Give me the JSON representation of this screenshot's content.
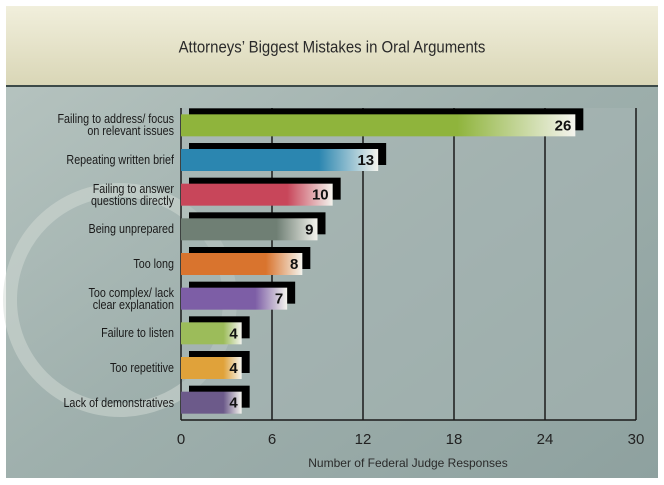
{
  "chart_data": {
    "type": "hbar",
    "title": "Attorneys’ Biggest Mistakes in Oral Arguments",
    "categories": [
      "Failing to address/ focus\non relevant issues",
      "Repeating written brief",
      "Failing to answer\nquestions directly",
      "Being unprepared",
      "Too long",
      "Too complex/ lack\nclear explanation",
      "Failure to listen",
      "Too repetitive",
      "Lack of demonstratives"
    ],
    "values": [
      26,
      13,
      10,
      9,
      8,
      7,
      4,
      4,
      4
    ],
    "colors": [
      "#8fb43c",
      "#2b86b0",
      "#c8465a",
      "#6f7f74",
      "#d9742e",
      "#7d5ea6",
      "#9cbc5a",
      "#e0a23a",
      "#6c5a8a"
    ],
    "xlim": [
      0,
      30
    ],
    "xticks": [
      0,
      6,
      12,
      18,
      24,
      30
    ],
    "grid": true,
    "xlabel": "Number of Federal Judge Responses"
  }
}
